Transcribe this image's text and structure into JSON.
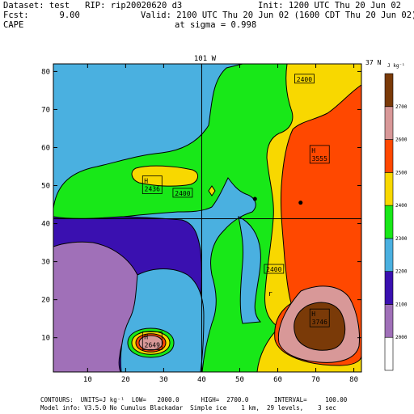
{
  "header": {
    "dataset_line": "Dataset: test   RIP: rip20020620 d3",
    "init_line": "Init: 1200 UTC Thu 20 Jun 02",
    "fcst_line": "Fcst:      9.00",
    "valid_line": "Valid: 2100 UTC Thu 20 Jun 02 (1600 CDT Thu 20 Jun 02)",
    "field_name": "CAPE",
    "sigma_line": "at sigma = 0.998"
  },
  "footer": {
    "contour_line": "CONTOURS:  UNITS=J kg⁻¹  LOW=   2000.0      HIGH=  2700.0       INTERVAL=     100.00",
    "model_line": "Model info: V3.5.0 No Cumulus Blackadar  Simple ice    1 km,  29 levels,    3 sec"
  },
  "colorbar": {
    "units": "J kg⁻¹",
    "levels": [
      "2000",
      "2100",
      "2200",
      "2300",
      "2400",
      "2500",
      "2600",
      "2700"
    ],
    "colors": [
      "#ffffff",
      "#a070b8",
      "#3a10b0",
      "#4ab0e0",
      "#18e818",
      "#f8d800",
      "#ff4800",
      "#d89898",
      "#7a3a08"
    ]
  },
  "chart_data": {
    "type": "heatmap",
    "subtype": "filled-contour",
    "field": "CAPE",
    "units": "J kg-1",
    "xlim": [
      1,
      82
    ],
    "ylim": [
      1,
      82
    ],
    "x_ticks": [
      10,
      20,
      30,
      40,
      50,
      60,
      70,
      80
    ],
    "y_ticks": [
      10,
      20,
      30,
      40,
      50,
      60,
      70,
      80
    ],
    "contour_levels": [
      2000,
      2100,
      2200,
      2300,
      2400,
      2500,
      2600,
      2700
    ],
    "meridian_label": "101 W",
    "parallel_label": "37 N",
    "meridian_x": 40,
    "parallel_y": 41.3,
    "extrema": [
      {
        "type": "H",
        "value": "2649",
        "x": 27,
        "y": 9
      },
      {
        "type": "H",
        "value": "3746",
        "x": 71,
        "y": 15
      },
      {
        "type": "H",
        "value": "3555",
        "x": 71,
        "y": 58
      },
      {
        "type": "H",
        "value": "2436",
        "x": 27,
        "y": 50
      }
    ],
    "contour_labels": [
      {
        "text": "2400",
        "x": 67,
        "y": 78
      },
      {
        "text": "2400",
        "x": 35,
        "y": 48
      },
      {
        "text": "2400",
        "x": 59,
        "y": 28
      }
    ],
    "stations": [
      {
        "x": 54,
        "y": 46.5
      },
      {
        "x": 66,
        "y": 45.5
      }
    ],
    "letter_marks": [
      {
        "text": "r",
        "x": 58,
        "y": 21
      }
    ],
    "grid": false
  }
}
